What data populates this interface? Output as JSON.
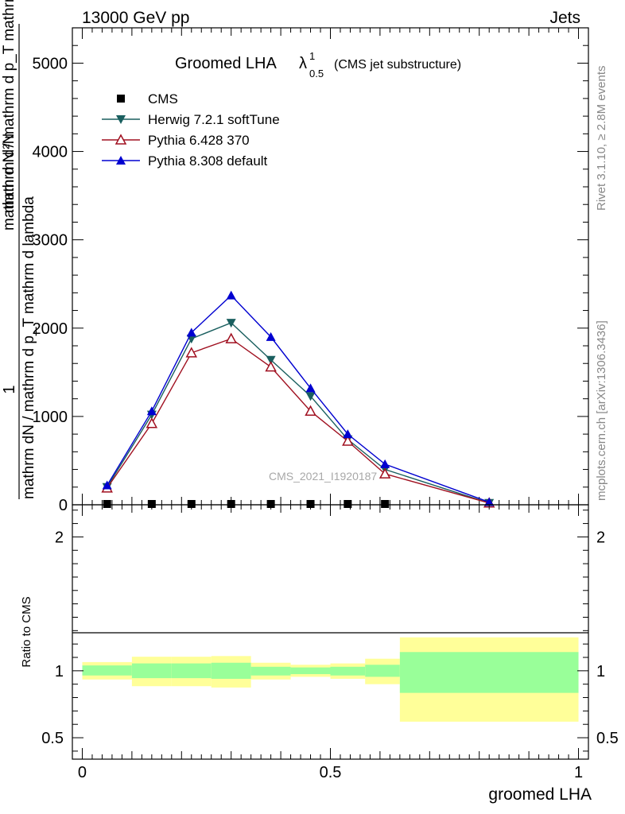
{
  "header": {
    "left": "13000 GeV pp",
    "right": "Jets"
  },
  "title": {
    "main": "Groomed LHA",
    "lambda": "λ",
    "sup": "1",
    "sub": "0.5",
    "extra": "(CMS jet substructure)"
  },
  "side_labels": {
    "rivet": "Rivet 3.1.10, ≥ 2.8M events",
    "mcplots": "mcplots.cern.ch [arXiv:1306.3436]"
  },
  "watermark": "CMS_2021_I1920187",
  "colors": {
    "herwig": "#1a5f5f",
    "pythia6": "#a01020",
    "pythia8": "#0000d0",
    "band_inner": "#99ff99",
    "band_outer": "#ffff99"
  },
  "chart_data": [
    {
      "type": "line",
      "panel": "main",
      "xlim": [
        -0.02,
        1.02
      ],
      "ylim": [
        0,
        5400
      ],
      "ylabel_lines": [
        "1",
        "mathrm dN / mathrm d p_T mathrm d lambda",
        "mathrm d N / mathrm d p_T mathrm d p_T mathrm d lambda",
        "mathrm d²N"
      ],
      "yticks": [
        0,
        1000,
        2000,
        3000,
        4000,
        5000
      ],
      "ytick_labels": [
        "0",
        "1000",
        "2000",
        "3000",
        "4000",
        "5000"
      ],
      "legend_position": "top-left",
      "series": [
        {
          "name": "CMS",
          "marker": "square",
          "x": [
            0.05,
            0.14,
            0.22,
            0.3,
            0.38,
            0.46,
            0.535,
            0.61
          ],
          "y": [
            0,
            0,
            0,
            0,
            0,
            0,
            0,
            0
          ]
        },
        {
          "name": "Herwig 7.2.1 softTune",
          "marker": "triangle-down",
          "x": [
            0.05,
            0.14,
            0.22,
            0.3,
            0.38,
            0.46,
            0.535,
            0.61,
            0.82
          ],
          "y": [
            200,
            1020,
            1880,
            2060,
            1640,
            1230,
            740,
            400,
            20
          ]
        },
        {
          "name": "Pythia 6.428 370",
          "marker": "triangle-open",
          "x": [
            0.05,
            0.14,
            0.22,
            0.3,
            0.38,
            0.46,
            0.535,
            0.61,
            0.82
          ],
          "y": [
            190,
            920,
            1720,
            1880,
            1560,
            1060,
            720,
            350,
            20
          ]
        },
        {
          "name": "Pythia 8.308 default",
          "marker": "triangle-up",
          "x": [
            0.05,
            0.14,
            0.22,
            0.3,
            0.38,
            0.46,
            0.535,
            0.61,
            0.82
          ],
          "y": [
            220,
            1060,
            1950,
            2370,
            1900,
            1320,
            800,
            460,
            30
          ]
        }
      ]
    },
    {
      "type": "area",
      "panel": "ratio",
      "xlabel": "groomed LHA",
      "ylabel": "Ratio to CMS",
      "xlim": [
        -0.02,
        1.02
      ],
      "ylim": [
        0.34,
        2.24
      ],
      "xticks": [
        0,
        0.5,
        1
      ],
      "xtick_labels": [
        "0",
        "0.5",
        "1"
      ],
      "yticks": [
        0.5,
        1,
        2
      ],
      "ytick_labels": [
        "0.5",
        "1",
        "2"
      ],
      "reference_line": 1,
      "bins": [
        {
          "lo": 0.0,
          "hi": 0.1,
          "inner": [
            0.965,
            1.04
          ],
          "outer": [
            0.935,
            1.065
          ]
        },
        {
          "lo": 0.1,
          "hi": 0.18,
          "inner": [
            0.945,
            1.055
          ],
          "outer": [
            0.885,
            1.105
          ]
        },
        {
          "lo": 0.18,
          "hi": 0.26,
          "inner": [
            0.945,
            1.055
          ],
          "outer": [
            0.885,
            1.105
          ]
        },
        {
          "lo": 0.26,
          "hi": 0.34,
          "inner": [
            0.94,
            1.06
          ],
          "outer": [
            0.875,
            1.11
          ]
        },
        {
          "lo": 0.34,
          "hi": 0.42,
          "inner": [
            0.965,
            1.03
          ],
          "outer": [
            0.935,
            1.06
          ]
        },
        {
          "lo": 0.42,
          "hi": 0.5,
          "inner": [
            0.975,
            1.025
          ],
          "outer": [
            0.955,
            1.045
          ]
        },
        {
          "lo": 0.5,
          "hi": 0.57,
          "inner": [
            0.965,
            1.03
          ],
          "outer": [
            0.94,
            1.055
          ]
        },
        {
          "lo": 0.57,
          "hi": 0.64,
          "inner": [
            0.955,
            1.045
          ],
          "outer": [
            0.9,
            1.09
          ]
        },
        {
          "lo": 0.64,
          "hi": 1.0,
          "inner": [
            0.835,
            1.14
          ],
          "outer": [
            0.62,
            1.25
          ]
        }
      ]
    }
  ]
}
